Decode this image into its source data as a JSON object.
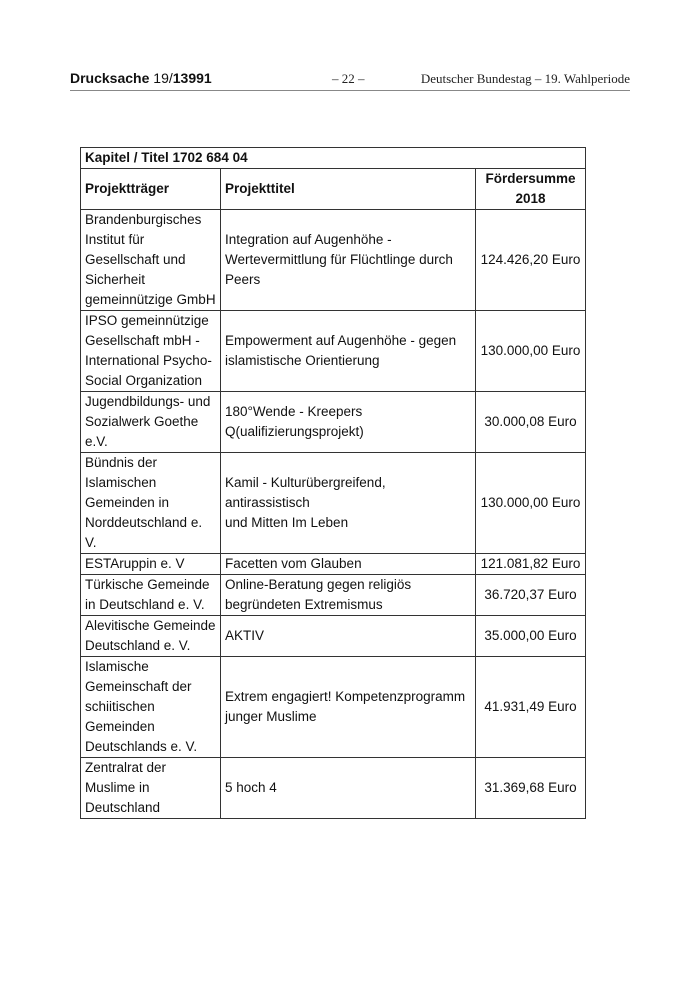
{
  "header": {
    "doc_label": "Drucksache",
    "doc_num_a": "19/",
    "doc_num_b": "13991",
    "page": "– 22 –",
    "publisher": "Deutscher Bundestag – 19. Wahlperiode"
  },
  "table": {
    "title": "Kapitel / Titel 1702 684 04",
    "columns": [
      "Projektträger",
      "Projekttitel",
      "Fördersumme\n2018"
    ],
    "rows": [
      {
        "traeger": "Brandenburgisches\nInstitut für\nGesellschaft und\nSicherheit\ngemeinnützige GmbH",
        "titel": "Integration auf Augenhöhe -\nWertevermittlung für Flüchtlinge durch\nPeers",
        "summe": "124.426,20 Euro"
      },
      {
        "traeger": "IPSO gemeinnützige\nGesellschaft mbH -\nInternational Psycho-\nSocial Organization",
        "titel": "Empowerment auf Augenhöhe - gegen\nislamistische Orientierung",
        "summe": "130.000,00 Euro"
      },
      {
        "traeger": "Jugendbildungs- und\nSozialwerk Goethe\ne.V.",
        "titel": "180°Wende - Kreepers\nQ(ualifizierungsprojekt)",
        "summe": "30.000,08 Euro"
      },
      {
        "traeger": "Bündnis der\nIslamischen\nGemeinden in\nNorddeutschland e.\nV.",
        "titel": "Kamil - Kulturübergreifend, antirassistisch\nund Mitten Im Leben",
        "summe": "130.000,00 Euro"
      },
      {
        "traeger": "ESTAruppin e. V",
        "titel": "Facetten vom Glauben",
        "summe": "121.081,82 Euro"
      },
      {
        "traeger": "Türkische Gemeinde\nin Deutschland e. V.",
        "titel": "Online-Beratung gegen religiös\nbegründeten Extremismus",
        "summe": "36.720,37 Euro"
      },
      {
        "traeger": "Alevitische Gemeinde\nDeutschland e. V.",
        "titel": "AKTIV",
        "summe": "35.000,00 Euro"
      },
      {
        "traeger": "Islamische\nGemeinschaft der\nschiitischen\nGemeinden\nDeutschlands e. V.",
        "titel": "Extrem engagiert! Kompetenzprogramm\njunger Muslime",
        "summe": "41.931,49 Euro"
      },
      {
        "traeger": "Zentralrat der\nMuslime in\nDeutschland",
        "titel": "5 hoch 4",
        "summe": "31.369,68 Euro"
      }
    ]
  }
}
